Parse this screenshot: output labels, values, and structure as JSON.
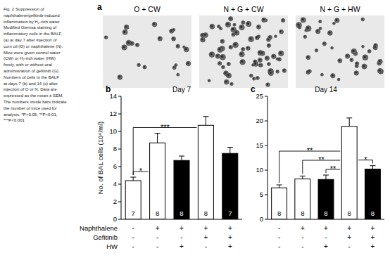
{
  "caption": [
    "Fig. 2 Suppression of",
    "naphthalene/gefitinib-induced",
    "inflammation by H₂-rich water.",
    "Modified Giemsa staining of",
    "inflammatory cells in the BALF",
    "(a) at day 7 after injection of",
    "corn oil (O) or naphthalene (N).",
    "Mice were given control water",
    "(CW) or H₂-rich water (HW)",
    "freely, with or without oral",
    "administration of gefitinib (G).",
    "Numbers of cells in the BALF",
    "at days 7 (b) and 14 (c) after",
    "injection of O or N. Data are",
    "expressed as the mean ± SEM.",
    "The numbers inside bars indicate",
    "the number of mice used for",
    "analysis. *P<0.05, **P<0.01,",
    "***P<0.001"
  ],
  "panel_a": {
    "label": "a",
    "images": [
      "O + CW",
      "N + G + CW",
      "N + G + HW"
    ]
  },
  "treatments": {
    "rows": [
      {
        "label": "Naphthalene",
        "values": [
          "-",
          "+",
          "+",
          "+",
          "+"
        ]
      },
      {
        "label": "Gefitinib",
        "values": [
          "-",
          "-",
          "-",
          "+",
          "+"
        ]
      },
      {
        "label": "HW",
        "values": [
          "-",
          "-",
          "+",
          "-",
          "+"
        ]
      }
    ]
  },
  "chart_data": [
    {
      "type": "bar",
      "panel_label": "b",
      "title": "Day 7",
      "ylabel": "No. of BAL cells (10⁴/ml)",
      "categories": [
        null,
        null,
        null,
        null,
        null
      ],
      "values": [
        4.4,
        8.7,
        6.7,
        10.7,
        7.5
      ],
      "errors": [
        0.4,
        1.1,
        0.5,
        1.0,
        0.7
      ],
      "n": [
        7,
        8,
        8,
        8,
        7
      ],
      "colors": [
        "#ffffff",
        "#ffffff",
        "#000000",
        "#ffffff",
        "#000000"
      ],
      "ylim": [
        0,
        14
      ],
      "yticks": [
        0,
        2,
        4,
        6,
        8,
        10,
        12,
        14
      ],
      "annotations": [
        {
          "between": [
            0,
            1
          ],
          "text": "*"
        },
        {
          "between": [
            0,
            3
          ],
          "text": "***"
        }
      ]
    },
    {
      "type": "bar",
      "panel_label": "c",
      "title": "Day 14",
      "categories": [
        null,
        null,
        null,
        null,
        null
      ],
      "values": [
        6.4,
        8.2,
        8.1,
        18.9,
        10.2
      ],
      "errors": [
        0.6,
        0.6,
        0.9,
        1.7,
        0.7
      ],
      "n": [
        8,
        8,
        8,
        8,
        8
      ],
      "colors": [
        "#ffffff",
        "#ffffff",
        "#000000",
        "#ffffff",
        "#000000"
      ],
      "ylim": [
        0,
        25
      ],
      "yticks": [
        0,
        5,
        10,
        15,
        20,
        25
      ],
      "annotations": [
        {
          "between": [
            0,
            3
          ],
          "text": "**"
        },
        {
          "between": [
            1,
            3
          ],
          "text": "**"
        },
        {
          "between": [
            2,
            3
          ],
          "text": "**"
        },
        {
          "between": [
            3,
            4
          ],
          "text": "*"
        }
      ]
    }
  ]
}
